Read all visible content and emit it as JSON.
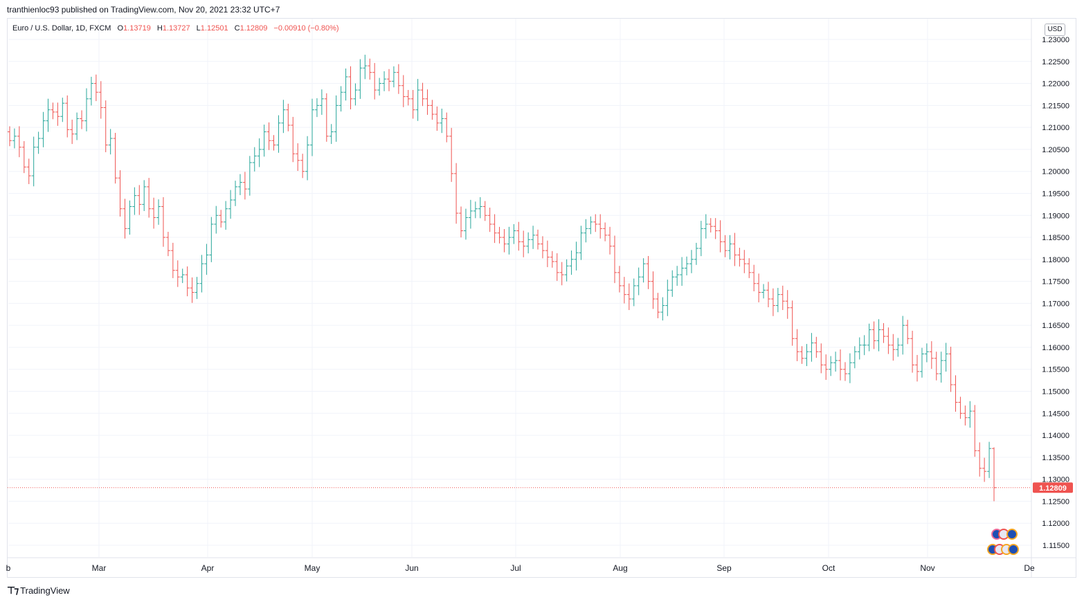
{
  "publisher": "tranthienloc93 published on TradingView.com, Nov 20, 2021 23:32 UTC+7",
  "legend": {
    "symbol": "Euro / U.S. Dollar, 1D, FXCM",
    "o_label": "O",
    "o_value": "1.13719",
    "h_label": "H",
    "h_value": "1.13727",
    "l_label": "L",
    "l_value": "1.12501",
    "c_label": "C",
    "c_value": "1.12809",
    "change": "−0.00910 (−0.80%)"
  },
  "currency_button": "USD",
  "last_price_label": "1.12809",
  "branding": "TradingView",
  "colors": {
    "up": "#26a69a",
    "down": "#ef5350",
    "grid": "#f0f3fa",
    "text": "#131722"
  },
  "event_icons": [
    "flag-eu-icon",
    "flag-us-icon"
  ],
  "chart_data": {
    "type": "ohlc-bar",
    "symbol": "EURUSD",
    "timeframe": "1D",
    "x_labels": [
      "b",
      "Mar",
      "Apr",
      "May",
      "Jun",
      "Jul",
      "Aug",
      "Sep",
      "Oct",
      "Nov",
      "De"
    ],
    "y_ticks": [
      "1.23000",
      "1.22500",
      "1.22000",
      "1.21500",
      "1.21000",
      "1.20500",
      "1.20000",
      "1.19500",
      "1.19000",
      "1.18500",
      "1.18000",
      "1.17500",
      "1.17000",
      "1.16500",
      "1.16000",
      "1.15500",
      "1.15000",
      "1.14500",
      "1.14000",
      "1.13500",
      "1.13000",
      "1.12500",
      "1.12000",
      "1.11500"
    ],
    "ylim": [
      1.1125,
      1.2325
    ],
    "last_close": 1.12809,
    "close_series": [
      1.207,
      1.208,
      1.2055,
      1.201,
      1.199,
      1.2055,
      1.2075,
      1.2115,
      1.214,
      1.2135,
      1.2125,
      1.2155,
      1.2095,
      1.2085,
      1.212,
      1.2115,
      1.2165,
      1.22,
      1.218,
      1.2145,
      1.206,
      1.2075,
      1.1985,
      1.1915,
      1.187,
      1.192,
      1.1945,
      1.1925,
      1.1965,
      1.1915,
      1.1895,
      1.192,
      1.185,
      1.182,
      1.1775,
      1.176,
      1.1765,
      1.1735,
      1.1725,
      1.1745,
      1.179,
      1.181,
      1.188,
      1.19,
      1.1885,
      1.1915,
      1.1935,
      1.1965,
      1.1975,
      1.196,
      1.202,
      1.2035,
      1.205,
      1.209,
      1.207,
      1.206,
      1.211,
      1.214,
      1.2105,
      1.204,
      1.2025,
      1.2,
      1.206,
      1.214,
      1.215,
      1.2165,
      1.208,
      1.209,
      1.215,
      1.218,
      1.2215,
      1.2165,
      1.2185,
      1.2235,
      1.224,
      1.2225,
      1.2185,
      1.22,
      1.221,
      1.2205,
      1.2225,
      1.2195,
      1.217,
      1.2165,
      1.214,
      1.2185,
      1.2165,
      1.215,
      1.213,
      1.211,
      1.212,
      1.208,
      1.1995,
      1.1905,
      1.1865,
      1.1895,
      1.191,
      1.1915,
      1.192,
      1.19,
      1.188,
      1.186,
      1.185,
      1.1835,
      1.185,
      1.1865,
      1.184,
      1.183,
      1.1845,
      1.1855,
      1.1835,
      1.182,
      1.1805,
      1.1795,
      1.177,
      1.1765,
      1.1785,
      1.18,
      1.1815,
      1.186,
      1.187,
      1.1885,
      1.188,
      1.187,
      1.1855,
      1.183,
      1.177,
      1.174,
      1.172,
      1.171,
      1.174,
      1.176,
      1.179,
      1.175,
      1.171,
      1.168,
      1.1695,
      1.173,
      1.176,
      1.1765,
      1.178,
      1.179,
      1.18,
      1.1825,
      1.187,
      1.188,
      1.1875,
      1.1865,
      1.184,
      1.182,
      1.1835,
      1.181,
      1.18,
      1.179,
      1.177,
      1.1745,
      1.1725,
      1.173,
      1.171,
      1.1695,
      1.172,
      1.1705,
      1.169,
      1.162,
      1.159,
      1.1575,
      1.159,
      1.161,
      1.159,
      1.156,
      1.155,
      1.1565,
      1.157,
      1.155,
      1.154,
      1.1565,
      1.159,
      1.1605,
      1.1605,
      1.164,
      1.1615,
      1.164,
      1.1625,
      1.1605,
      1.1595,
      1.1605,
      1.165,
      1.162,
      1.156,
      1.1545,
      1.1585,
      1.159,
      1.1575,
      1.154,
      1.157,
      1.1585,
      1.1515,
      1.1475,
      1.145,
      1.144,
      1.1455,
      1.1365,
      1.1325,
      1.1318,
      1.137,
      1.12809
    ]
  }
}
